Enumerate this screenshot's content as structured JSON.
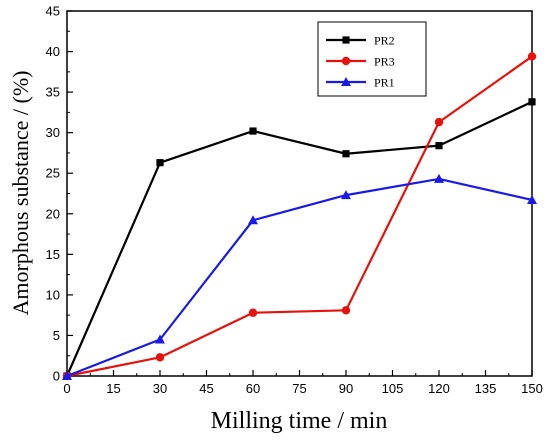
{
  "chart_data": {
    "type": "line",
    "xlabel": "Milling time / min",
    "ylabel": "Amorphous substance / (%)",
    "xlim": [
      0,
      150
    ],
    "ylim": [
      0,
      45
    ],
    "xticks": [
      0,
      15,
      30,
      45,
      60,
      75,
      90,
      105,
      120,
      135,
      150
    ],
    "yticks": [
      0,
      5,
      10,
      15,
      20,
      25,
      30,
      35,
      40,
      45
    ],
    "grid": false,
    "legend_position": "top-right",
    "x": [
      0,
      30,
      60,
      90,
      120,
      150
    ],
    "series": [
      {
        "name": "PR2",
        "color": "#000000",
        "marker": "square",
        "values": [
          0,
          26.3,
          30.2,
          27.4,
          28.4,
          33.8
        ]
      },
      {
        "name": "PR3",
        "color": "#e8120c",
        "marker": "circle",
        "values": [
          0,
          2.3,
          7.8,
          8.1,
          31.3,
          39.4
        ]
      },
      {
        "name": "PR1",
        "color": "#1a1ae6",
        "marker": "triangle",
        "values": [
          0,
          4.5,
          19.2,
          22.3,
          24.3,
          21.7
        ]
      }
    ]
  }
}
